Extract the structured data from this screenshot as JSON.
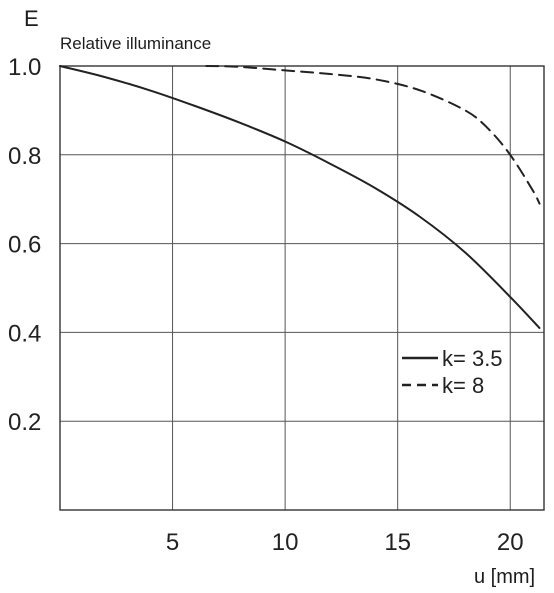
{
  "chart_data": {
    "type": "line",
    "title": "",
    "ylabel_symbol": "E",
    "ylabel": "Relative illuminance",
    "xlabel": "u [mm]",
    "xlim": [
      0,
      21.5
    ],
    "ylim": [
      0,
      1.0
    ],
    "x_ticks": [
      5,
      10,
      15,
      20
    ],
    "x_tick_labels": [
      "5",
      "10",
      "15",
      "20"
    ],
    "y_ticks": [
      0.2,
      0.4,
      0.6,
      0.8,
      1.0
    ],
    "y_tick_labels": [
      "0.2",
      "0.4",
      "0.6",
      "0.8",
      "1.0"
    ],
    "grid": true,
    "legend_position": "lower-right",
    "series": [
      {
        "name": "k= 3.5",
        "line_style": "solid",
        "color": "#222222",
        "x": [
          0,
          2,
          4,
          6,
          8,
          10,
          12,
          14,
          16,
          18,
          20,
          21.3
        ],
        "y": [
          1.0,
          0.975,
          0.945,
          0.91,
          0.872,
          0.83,
          0.78,
          0.725,
          0.66,
          0.58,
          0.48,
          0.41
        ]
      },
      {
        "name": "k= 8",
        "line_style": "dashed",
        "color": "#222222",
        "x": [
          6.5,
          8,
          10,
          12,
          14,
          16,
          18,
          19,
          20,
          21,
          21.3
        ],
        "y": [
          1.0,
          0.998,
          0.99,
          0.982,
          0.97,
          0.945,
          0.9,
          0.86,
          0.8,
          0.72,
          0.69
        ]
      }
    ]
  }
}
